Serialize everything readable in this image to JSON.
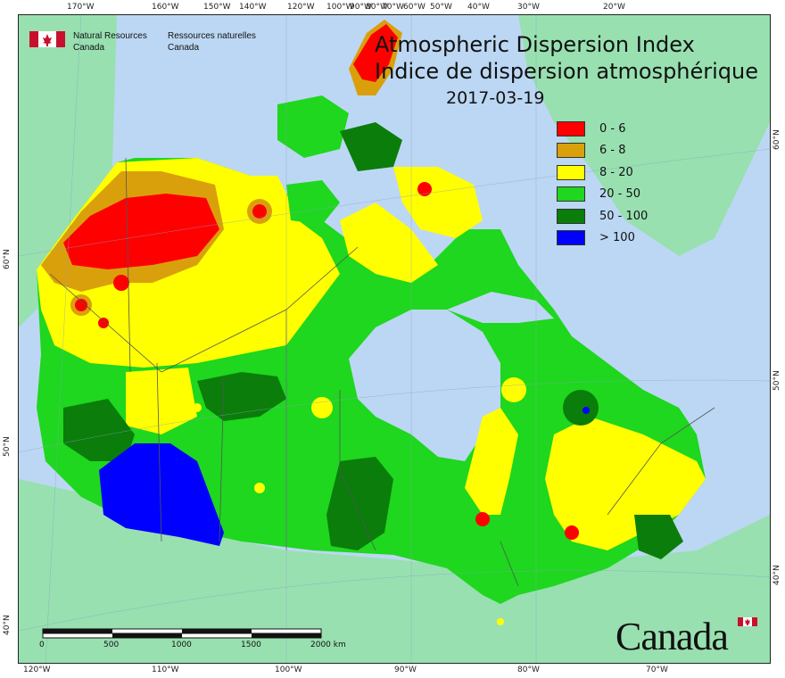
{
  "title": {
    "english": "Atmospheric Dispersion Index",
    "french": "Indice de dispersion atmosphérique",
    "date": "2017-03-19"
  },
  "agency": {
    "english_line1": "Natural Resources",
    "english_line2": "Canada",
    "french_line1": "Ressources naturelles",
    "french_line2": "Canada"
  },
  "wordmark": "Canada",
  "legend": [
    {
      "label": "0 - 6",
      "color": "#ff0000"
    },
    {
      "label": "6 - 8",
      "color": "#d9a00c"
    },
    {
      "label": "8 - 20",
      "color": "#ffff00"
    },
    {
      "label": "20 - 50",
      "color": "#1ed71e"
    },
    {
      "label": "50 - 100",
      "color": "#0a7d0a"
    },
    {
      "label": "> 100",
      "color": "#0000ff"
    }
  ],
  "scale_bar": {
    "labels": [
      "0",
      "500",
      "1000",
      "1500",
      "2000 km"
    ]
  },
  "axis_ticks": {
    "top": [
      "170°W",
      "160°W",
      "150°W",
      "140°W",
      "120°W",
      "100°W",
      "90°W",
      "80°W",
      "70°W",
      "60°W",
      "50°W",
      "40°W",
      "30°W",
      "20°W"
    ],
    "bottom": [
      "120°W",
      "110°W",
      "100°W",
      "90°W",
      "80°W",
      "70°W"
    ],
    "left": [
      "60°N",
      "50°N",
      "40°N"
    ],
    "right": [
      "60°N",
      "50°N",
      "40°N"
    ]
  },
  "colors": {
    "ocean": "#bcd7f3",
    "land_outside": "#98e0b0",
    "border": "#555555"
  }
}
